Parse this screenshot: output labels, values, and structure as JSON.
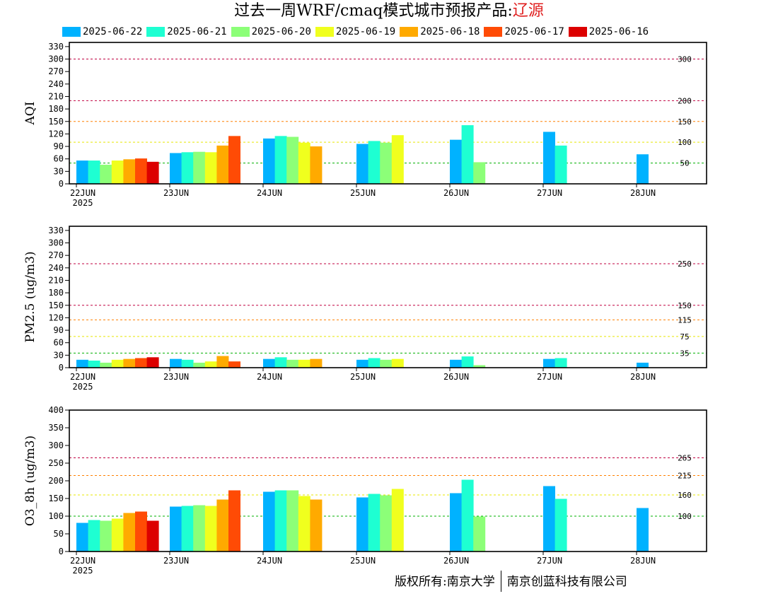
{
  "header": {
    "title_prefix": "过去一周WRF/cmaq模式城市预报产品:",
    "city": "辽源"
  },
  "colors": {
    "series": [
      "#00b2ff",
      "#1effd2",
      "#8cff78",
      "#f0ff1e",
      "#ffaa00",
      "#ff4b05",
      "#dc0000"
    ],
    "aqi_thresholds": [
      "#c00040",
      "#c00040",
      "#ff8000",
      "#e8e800",
      "#00b000"
    ],
    "pm25_thresholds": [
      "#c00040",
      "#c00040",
      "#ff8000",
      "#e8e800",
      "#00b000"
    ],
    "o3_thresholds": [
      "#c00040",
      "#ff8000",
      "#e8e800",
      "#00b000"
    ]
  },
  "footer": {
    "left": "版权所有:南京大学",
    "right": "南京创蓝科技有限公司"
  },
  "chart_data": [
    {
      "type": "bar",
      "ylabel": "AQI",
      "ylim": [
        0,
        340
      ],
      "yticks": [
        0,
        30,
        60,
        90,
        120,
        150,
        180,
        210,
        240,
        270,
        300,
        330
      ],
      "categories": [
        "22JUN",
        "23JUN",
        "24JUN",
        "25JUN",
        "26JUN",
        "27JUN",
        "28JUN"
      ],
      "year_label": "2025",
      "thresholds": [
        300,
        200,
        150,
        100,
        50
      ],
      "series": [
        {
          "name": "2025-06-22",
          "values": [
            56,
            74,
            109,
            96,
            106,
            125,
            71
          ]
        },
        {
          "name": "2025-06-21",
          "values": [
            56,
            76,
            115,
            103,
            141,
            92,
            null
          ]
        },
        {
          "name": "2025-06-20",
          "values": [
            46,
            77,
            113,
            99,
            52,
            null,
            null
          ]
        },
        {
          "name": "2025-06-19",
          "values": [
            56,
            76,
            99,
            117,
            null,
            null,
            null
          ]
        },
        {
          "name": "2025-06-18",
          "values": [
            59,
            92,
            90,
            null,
            null,
            null,
            null
          ]
        },
        {
          "name": "2025-06-17",
          "values": [
            61,
            115,
            null,
            null,
            null,
            null,
            null
          ]
        },
        {
          "name": "2025-06-16",
          "values": [
            53,
            null,
            null,
            null,
            null,
            null,
            null
          ]
        }
      ]
    },
    {
      "type": "bar",
      "ylabel": "PM2.5 (ug/m3)",
      "ylim": [
        0,
        340
      ],
      "yticks": [
        0,
        30,
        60,
        90,
        120,
        150,
        180,
        210,
        240,
        270,
        300,
        330
      ],
      "categories": [
        "22JUN",
        "23JUN",
        "24JUN",
        "25JUN",
        "26JUN",
        "27JUN",
        "28JUN"
      ],
      "year_label": "2025",
      "thresholds": [
        250,
        150,
        115,
        75,
        35
      ],
      "series": [
        {
          "name": "2025-06-22",
          "values": [
            19,
            21,
            21,
            19,
            19,
            21,
            12
          ]
        },
        {
          "name": "2025-06-21",
          "values": [
            17,
            19,
            25,
            23,
            27,
            23,
            null
          ]
        },
        {
          "name": "2025-06-20",
          "values": [
            12,
            12,
            19,
            19,
            6,
            null,
            null
          ]
        },
        {
          "name": "2025-06-19",
          "values": [
            19,
            15,
            19,
            21,
            null,
            null,
            null
          ]
        },
        {
          "name": "2025-06-18",
          "values": [
            21,
            28,
            21,
            null,
            null,
            null,
            null
          ]
        },
        {
          "name": "2025-06-17",
          "values": [
            23,
            15,
            null,
            null,
            null,
            null,
            null
          ]
        },
        {
          "name": "2025-06-16",
          "values": [
            25,
            null,
            null,
            null,
            null,
            null,
            null
          ]
        }
      ]
    },
    {
      "type": "bar",
      "ylabel": "O3_8h (ug/m3)",
      "ylim": [
        0,
        400
      ],
      "yticks": [
        0,
        50,
        100,
        150,
        200,
        250,
        300,
        350,
        400
      ],
      "categories": [
        "22JUN",
        "23JUN",
        "24JUN",
        "25JUN",
        "26JUN",
        "27JUN",
        "28JUN"
      ],
      "year_label": "2025",
      "thresholds": [
        265,
        215,
        160,
        100
      ],
      "series": [
        {
          "name": "2025-06-22",
          "values": [
            81,
            127,
            169,
            153,
            165,
            185,
            123
          ]
        },
        {
          "name": "2025-06-21",
          "values": [
            89,
            129,
            173,
            163,
            203,
            149,
            null
          ]
        },
        {
          "name": "2025-06-20",
          "values": [
            87,
            131,
            173,
            159,
            99,
            null,
            null
          ]
        },
        {
          "name": "2025-06-19",
          "values": [
            93,
            129,
            157,
            177,
            null,
            null,
            null
          ]
        },
        {
          "name": "2025-06-18",
          "values": [
            109,
            147,
            147,
            null,
            null,
            null,
            null
          ]
        },
        {
          "name": "2025-06-17",
          "values": [
            113,
            173,
            null,
            null,
            null,
            null,
            null
          ]
        },
        {
          "name": "2025-06-16",
          "values": [
            87,
            null,
            null,
            null,
            null,
            null,
            null
          ]
        }
      ]
    }
  ]
}
